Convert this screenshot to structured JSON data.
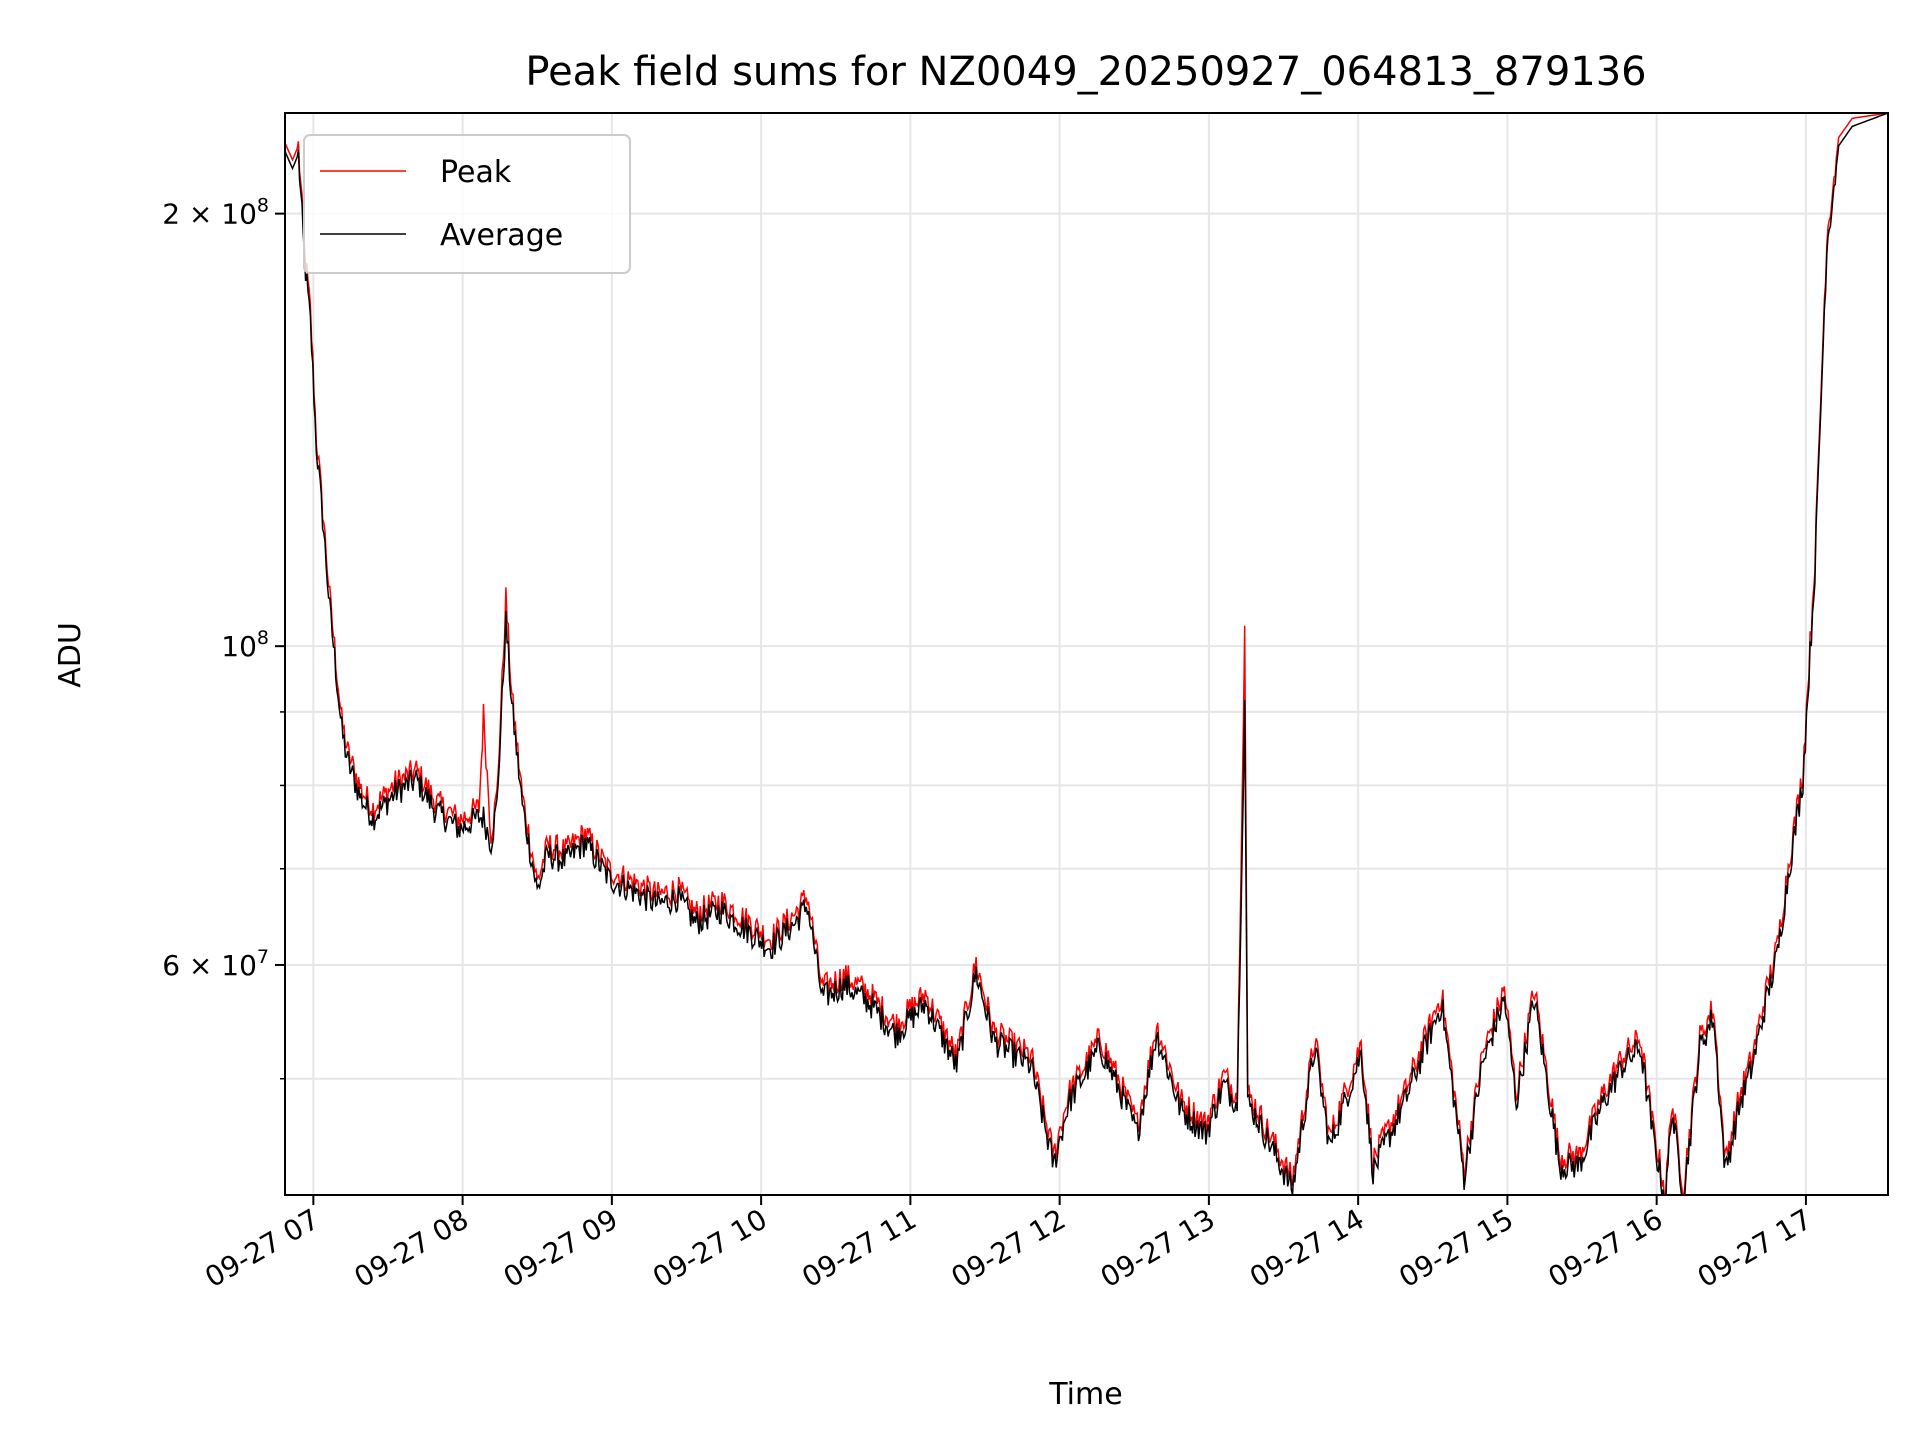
{
  "chart_data": {
    "type": "line",
    "title": "Peak field sums for NZ0049_20250927_064813_879136",
    "xlabel": "Time",
    "ylabel": "ADU",
    "yscale": "log",
    "xlim_hours": [
      6.81,
      17.55
    ],
    "ylim": [
      41500000.0,
      235000000.0
    ],
    "grid": true,
    "legend_position": "upper-left",
    "x_ticks": [
      {
        "hour": 7,
        "label": "09-27 07"
      },
      {
        "hour": 8,
        "label": "09-27 08"
      },
      {
        "hour": 9,
        "label": "09-27 09"
      },
      {
        "hour": 10,
        "label": "09-27 10"
      },
      {
        "hour": 11,
        "label": "09-27 11"
      },
      {
        "hour": 12,
        "label": "09-27 12"
      },
      {
        "hour": 13,
        "label": "09-27 13"
      },
      {
        "hour": 14,
        "label": "09-27 14"
      },
      {
        "hour": 15,
        "label": "09-27 15"
      },
      {
        "hour": 16,
        "label": "09-27 16"
      },
      {
        "hour": 17,
        "label": "09-27 17"
      }
    ],
    "y_ticks": [
      {
        "value": 200000000.0,
        "base": "2 × 10",
        "exp": "8"
      },
      {
        "value": 100000000.0,
        "base": "10",
        "exp": "8"
      },
      {
        "value": 60000000.0,
        "base": "6 × 10",
        "exp": "7"
      }
    ],
    "y_minor_ticks": [
      50000000.0,
      70000000.0,
      80000000.0,
      90000000.0
    ],
    "value_unit_multiplier": 100000000.0,
    "x_hours": [
      6.81,
      6.86,
      6.9,
      6.94,
      6.98,
      7.02,
      7.07,
      7.11,
      7.15,
      7.19,
      7.23,
      7.32,
      7.4,
      7.55,
      7.69,
      7.82,
      7.98,
      8.11,
      8.14,
      8.19,
      8.23,
      8.29,
      8.33,
      8.4,
      8.5,
      8.57,
      8.69,
      8.82,
      8.98,
      9.15,
      9.31,
      9.44,
      9.56,
      9.73,
      9.9,
      10.06,
      10.23,
      10.31,
      10.41,
      10.56,
      10.73,
      10.9,
      11.1,
      11.31,
      11.44,
      11.56,
      11.81,
      11.96,
      12.06,
      12.27,
      12.4,
      12.52,
      12.65,
      12.81,
      12.98,
      13.1,
      13.19,
      13.24,
      13.26,
      13.31,
      13.56,
      13.71,
      13.81,
      14.02,
      14.1,
      14.31,
      14.56,
      14.71,
      14.83,
      14.98,
      15.06,
      15.18,
      15.35,
      15.48,
      15.64,
      15.77,
      15.89,
      15.98,
      16.06,
      16.1,
      16.18,
      16.29,
      16.38,
      16.46,
      16.56,
      16.64,
      16.73,
      16.81,
      16.89,
      16.98,
      17.06,
      17.14,
      17.22,
      17.31,
      17.55
    ],
    "series": [
      {
        "name": "Peak",
        "color": "#ff0000",
        "values": [
          2.24,
          2.18,
          2.23,
          1.89,
          1.71,
          1.4,
          1.22,
          1.08,
          0.98,
          0.887,
          0.844,
          0.795,
          0.772,
          0.803,
          0.819,
          0.78,
          0.757,
          0.772,
          0.896,
          0.741,
          0.787,
          1.08,
          0.923,
          0.787,
          0.685,
          0.727,
          0.72,
          0.741,
          0.699,
          0.685,
          0.671,
          0.678,
          0.652,
          0.665,
          0.645,
          0.626,
          0.652,
          0.671,
          0.578,
          0.59,
          0.573,
          0.545,
          0.573,
          0.518,
          0.602,
          0.539,
          0.518,
          0.442,
          0.488,
          0.534,
          0.498,
          0.465,
          0.545,
          0.483,
          0.465,
          0.503,
          0.488,
          1.03,
          0.488,
          0.479,
          0.425,
          0.534,
          0.455,
          0.529,
          0.438,
          0.488,
          0.573,
          0.433,
          0.518,
          0.578,
          0.488,
          0.578,
          0.442,
          0.442,
          0.488,
          0.518,
          0.534,
          0.46,
          0.416,
          0.483,
          0.42,
          0.534,
          0.561,
          0.438,
          0.488,
          0.518,
          0.573,
          0.62,
          0.713,
          0.819,
          1.15,
          1.93,
          2.26,
          2.33,
          2.35
        ]
      },
      {
        "name": "Average",
        "color": "#000000",
        "values": [
          2.21,
          2.15,
          2.2,
          1.86,
          1.68,
          1.38,
          1.2,
          1.06,
          0.965,
          0.874,
          0.831,
          0.783,
          0.76,
          0.791,
          0.807,
          0.768,
          0.746,
          0.76,
          0.76,
          0.73,
          0.775,
          1.04,
          0.909,
          0.775,
          0.675,
          0.716,
          0.709,
          0.73,
          0.689,
          0.675,
          0.661,
          0.668,
          0.642,
          0.655,
          0.635,
          0.617,
          0.642,
          0.661,
          0.569,
          0.581,
          0.564,
          0.537,
          0.564,
          0.51,
          0.593,
          0.531,
          0.51,
          0.435,
          0.481,
          0.526,
          0.491,
          0.458,
          0.537,
          0.476,
          0.458,
          0.495,
          0.481,
          0.914,
          0.481,
          0.472,
          0.419,
          0.526,
          0.448,
          0.521,
          0.431,
          0.481,
          0.564,
          0.427,
          0.51,
          0.569,
          0.481,
          0.569,
          0.435,
          0.435,
          0.481,
          0.51,
          0.526,
          0.453,
          0.41,
          0.476,
          0.414,
          0.526,
          0.553,
          0.431,
          0.481,
          0.51,
          0.564,
          0.611,
          0.702,
          0.807,
          1.13,
          1.9,
          2.23,
          2.3,
          2.35
        ]
      }
    ]
  }
}
